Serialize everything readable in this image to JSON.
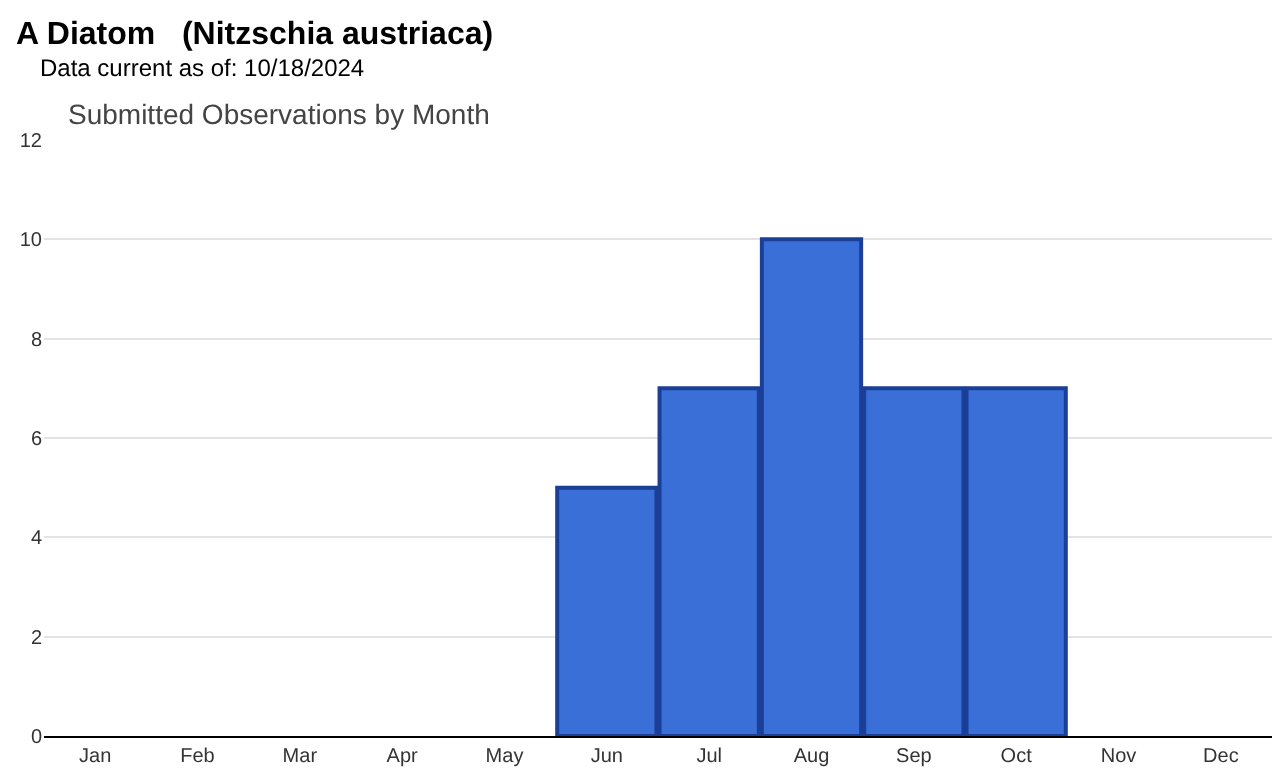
{
  "chart_data": {
    "type": "bar",
    "title": "A Diatom   (Nitzschia austriaca)",
    "subtitle": "Data current as of: 10/18/2024",
    "annotations": [
      "Submitted Observations by Month"
    ],
    "categories": [
      "Jan",
      "Feb",
      "Mar",
      "Apr",
      "May",
      "Jun",
      "Jul",
      "Aug",
      "Sep",
      "Oct",
      "Nov",
      "Dec"
    ],
    "values": [
      0,
      0,
      0,
      0,
      0,
      5,
      7,
      10,
      7,
      7,
      0,
      0
    ],
    "color": "#3a6fd8",
    "ylim": [
      0,
      12
    ],
    "yticks": [
      0,
      2,
      4,
      6,
      8,
      10,
      12
    ],
    "grid": "y"
  }
}
